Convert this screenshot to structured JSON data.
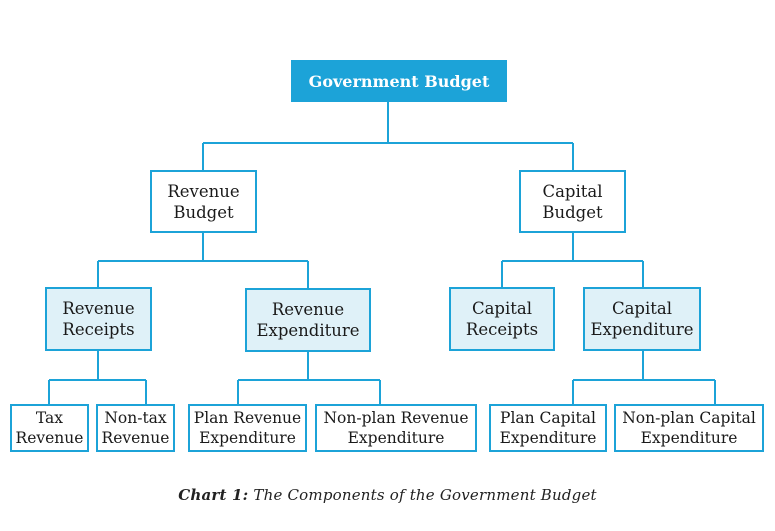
{
  "root": "Government Budget",
  "revenue_budget": "Revenue\nBudget",
  "capital_budget": "Capital\nBudget",
  "revenue_receipts": "Revenue\nReceipts",
  "revenue_expenditure": "Revenue\nExpenditure",
  "capital_receipts": "Capital\nReceipts",
  "capital_expenditure": "Capital\nExpenditure",
  "tax_revenue": "Tax\nRevenue",
  "non_tax_revenue": "Non-tax\nRevenue",
  "plan_revenue_expenditure": "Plan Revenue\nExpenditure",
  "non_plan_revenue_expenditure": "Non-plan Revenue\nExpenditure",
  "plan_capital_expenditure": "Plan Capital\nExpenditure",
  "non_plan_capital_expenditure": "Non-plan Capital\nExpenditure",
  "caption": {
    "label": "Chart 1:",
    "text": "The Components of the Government Budget"
  },
  "colors": {
    "accent": "#1ca3d8",
    "tint": "#dff1f8"
  }
}
